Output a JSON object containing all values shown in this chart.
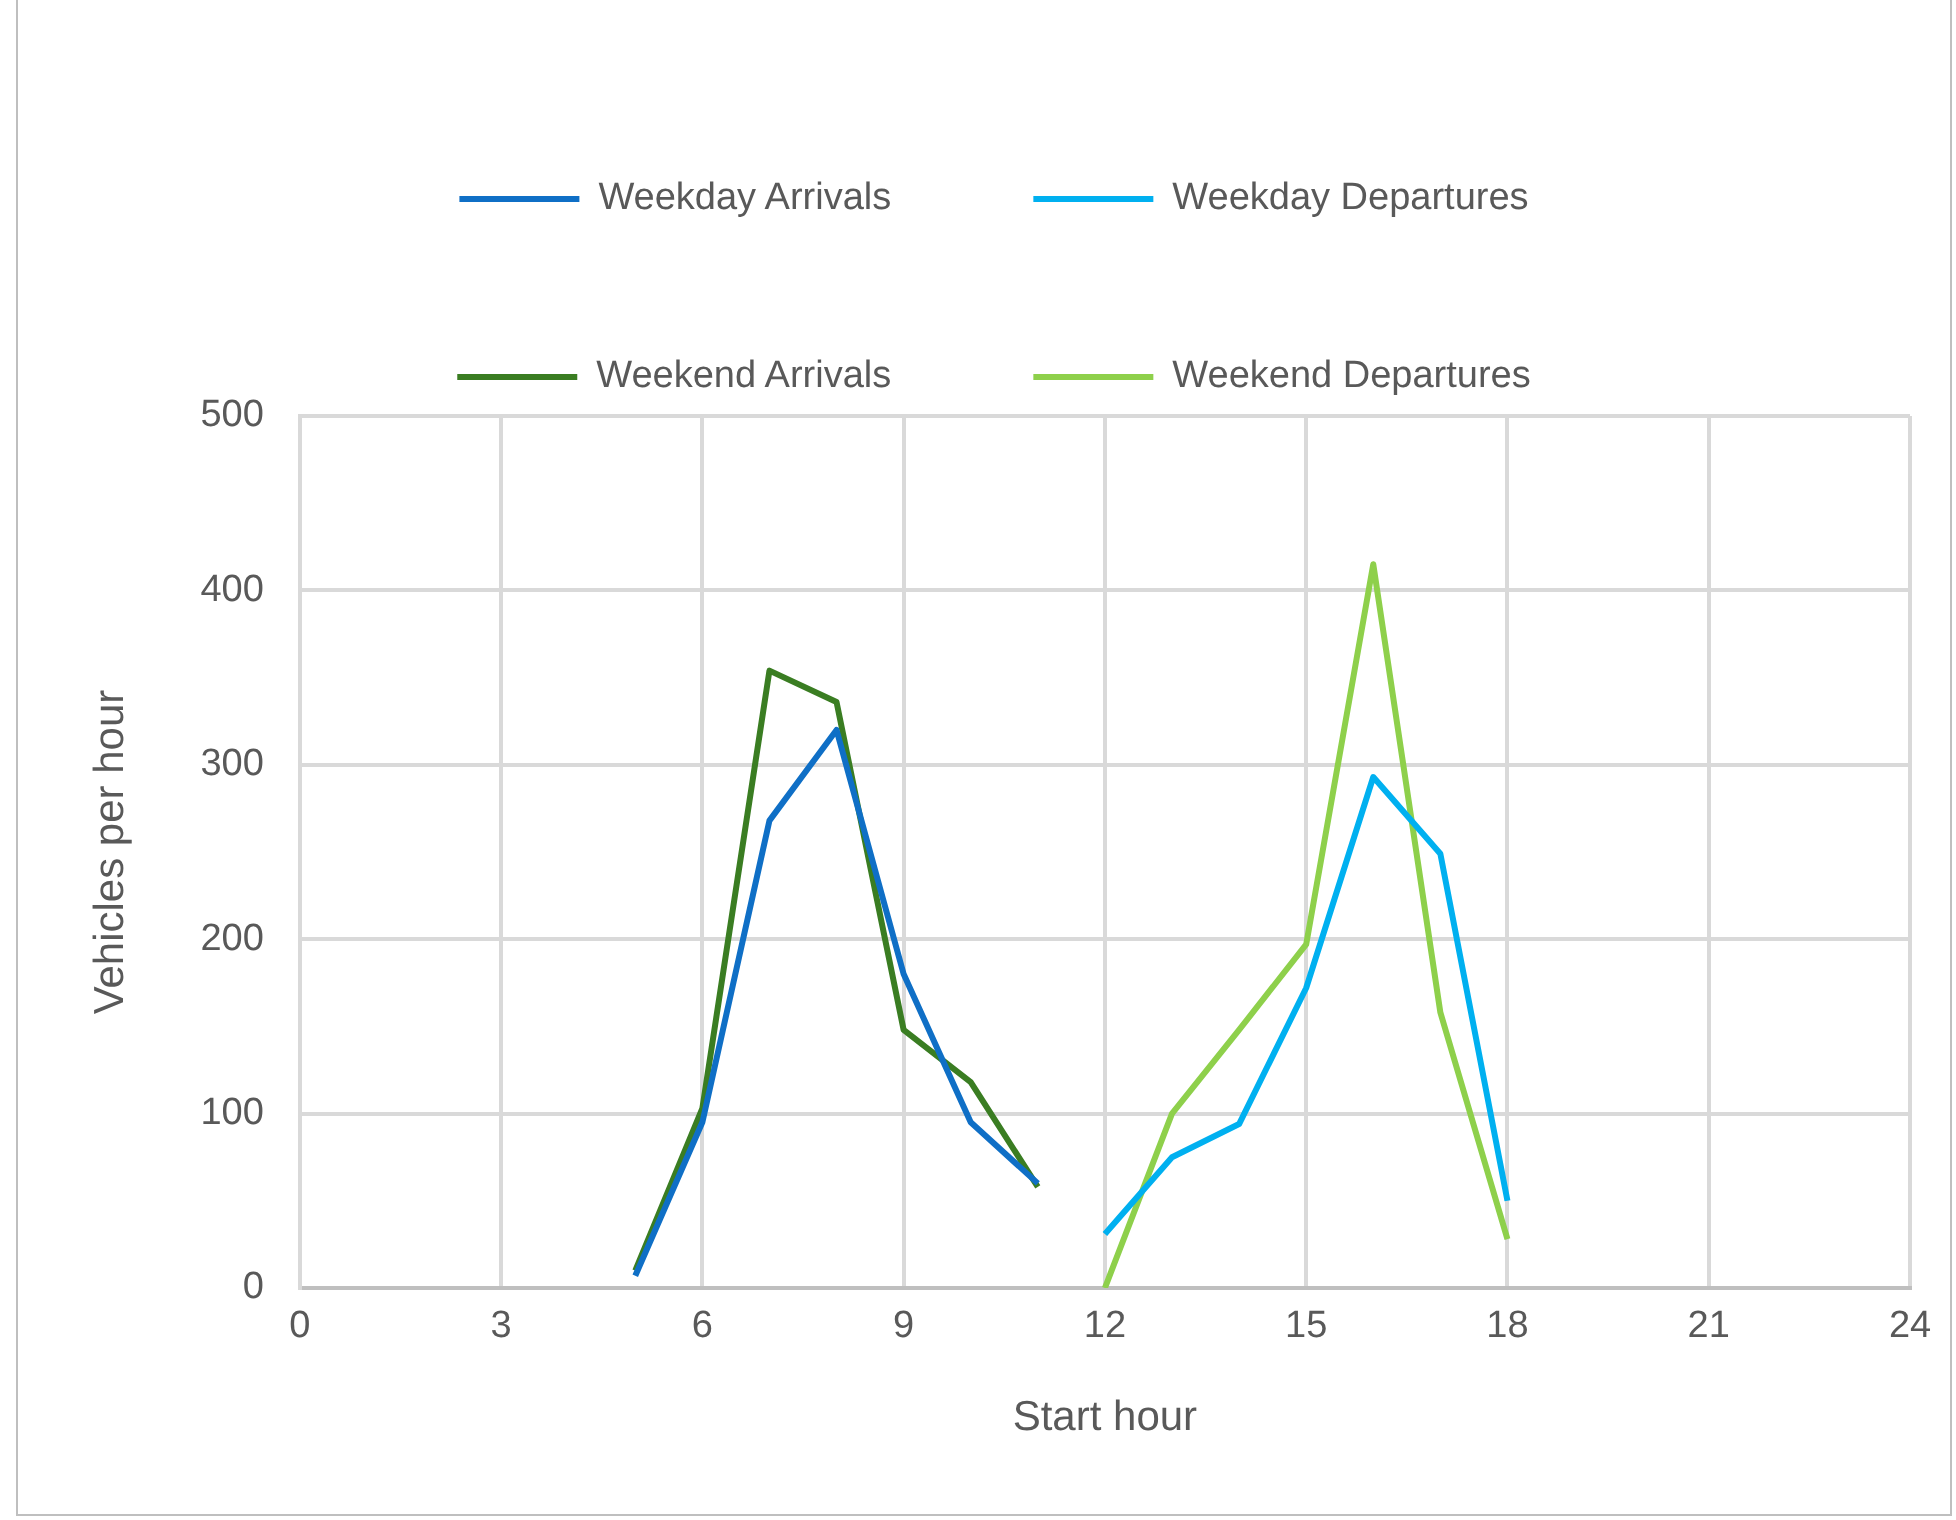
{
  "chart_data": {
    "type": "line",
    "xlabel": "Start hour",
    "ylabel": "Vehicles per hour",
    "xlim": [
      0,
      24
    ],
    "xticks": [
      0,
      3,
      6,
      9,
      12,
      15,
      18,
      21,
      24
    ],
    "ylim": [
      0,
      500
    ],
    "yticks": [
      0,
      100,
      200,
      300,
      400,
      500
    ],
    "grid": true,
    "legend": "top",
    "marker": "none",
    "line_style": "solid",
    "series": [
      {
        "name": "Weekday Arrivals",
        "color": "#0f6fc6",
        "x": [
          5,
          6,
          7,
          8,
          9,
          10,
          11
        ],
        "values": [
          7,
          95,
          268,
          320,
          180,
          95,
          60
        ]
      },
      {
        "name": "Weekday Departures",
        "color": "#00b0f0",
        "x": [
          12,
          13,
          14,
          15,
          16,
          17,
          18
        ],
        "values": [
          31,
          75,
          94,
          172,
          293,
          249,
          50
        ]
      },
      {
        "name": "Weekend Arrivals",
        "color": "#3a7d22",
        "x": [
          5,
          6,
          7,
          8,
          9,
          10,
          11
        ],
        "values": [
          10,
          103,
          354,
          336,
          148,
          118,
          58
        ]
      },
      {
        "name": "Weekend Departures",
        "color": "#8ed04b",
        "x": [
          12,
          13,
          14,
          15,
          16,
          17,
          18
        ],
        "values": [
          0,
          100,
          148,
          197,
          415,
          158,
          28
        ]
      }
    ]
  }
}
